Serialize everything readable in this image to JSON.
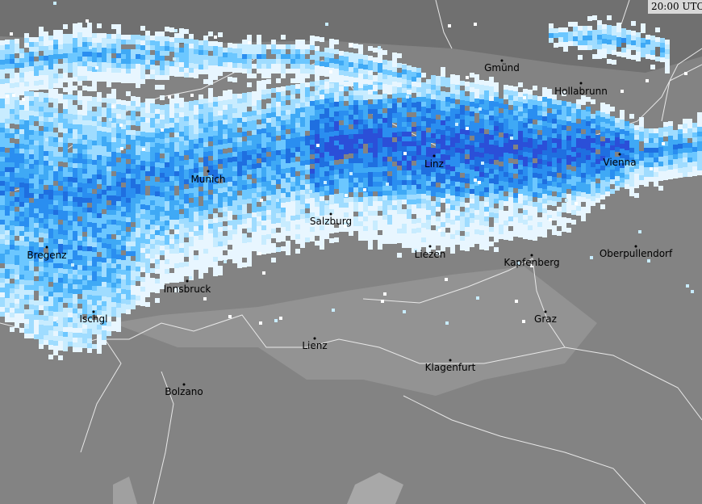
{
  "timestamp": "20:00 UTC",
  "cities": [
    {
      "label": "Gmünd"
    },
    {
      "label": "Hollabrunn"
    },
    {
      "label": "Linz"
    },
    {
      "label": "Vienna"
    },
    {
      "label": "Munich"
    },
    {
      "label": "Salzburg"
    },
    {
      "label": "Liezen"
    },
    {
      "label": "Kapfenberg"
    },
    {
      "label": "Oberpullendorf"
    },
    {
      "label": "Bregenz"
    },
    {
      "label": "Innsbruck"
    },
    {
      "label": "Ischgl"
    },
    {
      "label": "Graz"
    },
    {
      "label": "Lienz"
    },
    {
      "label": "Klagenfurt"
    },
    {
      "label": "Bolzano"
    }
  ]
}
